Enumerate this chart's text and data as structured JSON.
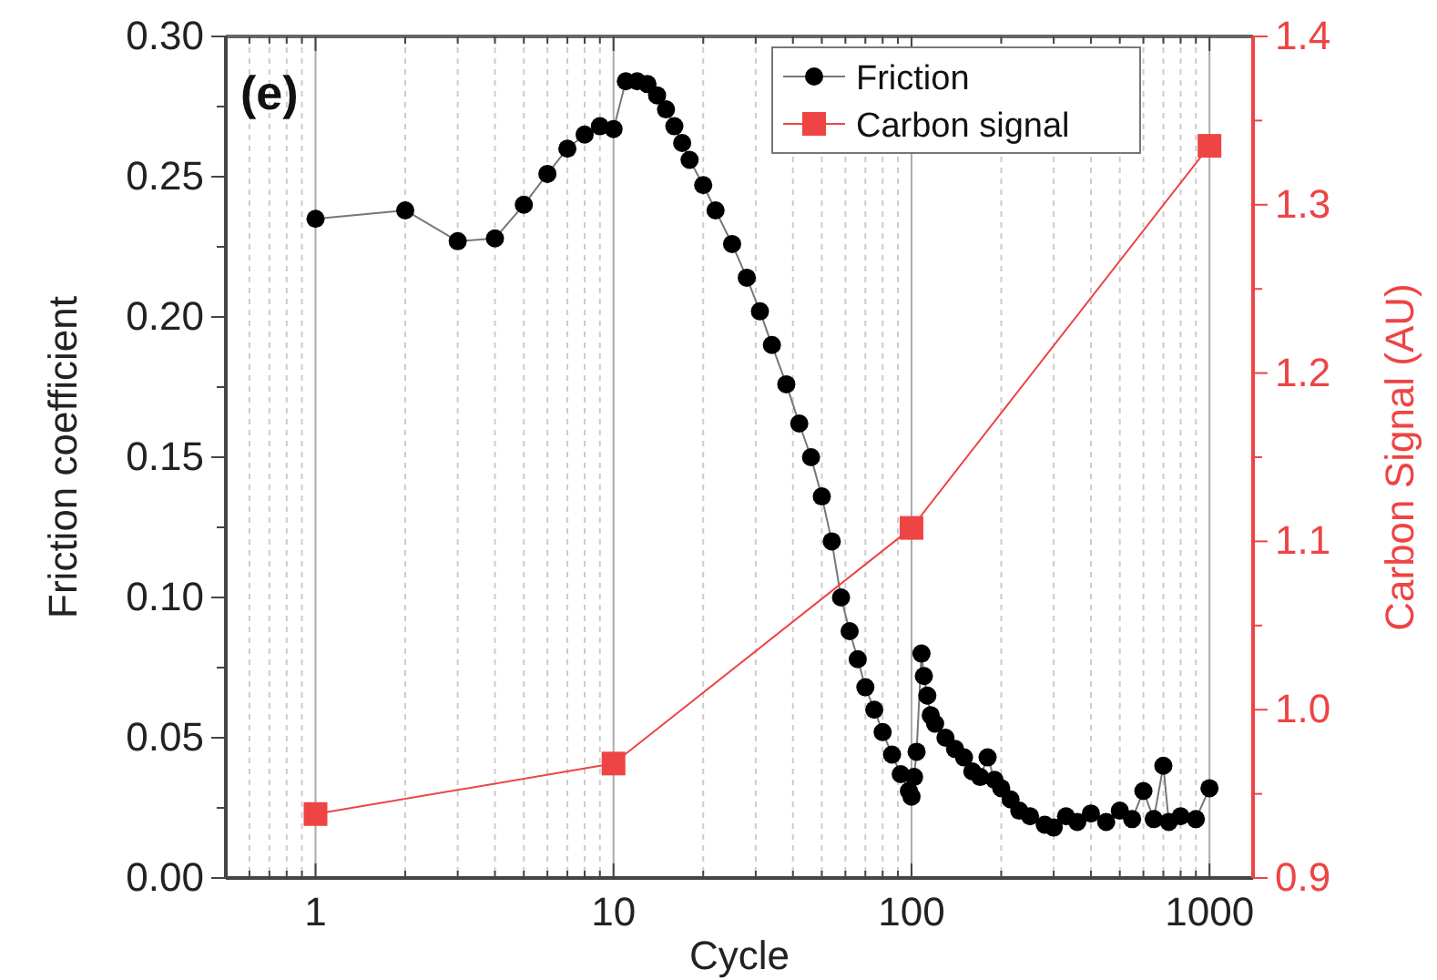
{
  "chart_data": {
    "type": "line",
    "xlabel": "Cycle",
    "ylabel": "Friction coefficient",
    "y2label": "Carbon Signal (AU)",
    "annotations": [
      "(e)"
    ],
    "log": "x",
    "grid": "x",
    "legend": "top right",
    "xlim": [
      0.5,
      1400
    ],
    "xticks": [
      {
        "value": 0.6,
        "label": null
      },
      {
        "value": 0.7,
        "label": null
      },
      {
        "value": 0.8,
        "label": null
      },
      {
        "value": 0.9,
        "label": null
      },
      1,
      {
        "value": 2,
        "label": null
      },
      {
        "value": 3,
        "label": null
      },
      {
        "value": 4,
        "label": null
      },
      {
        "value": 5,
        "label": null
      },
      {
        "value": 6,
        "label": null
      },
      {
        "value": 7,
        "label": null
      },
      {
        "value": 8,
        "label": null
      },
      {
        "value": 9,
        "label": null
      },
      10,
      {
        "value": 20,
        "label": null
      },
      {
        "value": 30,
        "label": null
      },
      {
        "value": 40,
        "label": null
      },
      {
        "value": 50,
        "label": null
      },
      {
        "value": 60,
        "label": null
      },
      {
        "value": 70,
        "label": null
      },
      {
        "value": 80,
        "label": null
      },
      {
        "value": 90,
        "label": null
      },
      100,
      {
        "value": 200,
        "label": null
      },
      {
        "value": 300,
        "label": null
      },
      {
        "value": 400,
        "label": null
      },
      {
        "value": 500,
        "label": null
      },
      {
        "value": 600,
        "label": null
      },
      {
        "value": 700,
        "label": null
      },
      {
        "value": 800,
        "label": null
      },
      {
        "value": 900,
        "label": null
      },
      1000
    ],
    "ylim": [
      0,
      0.3
    ],
    "yticks": [
      {
        "value": 0,
        "label": "0.00"
      },
      {
        "value": 0.025,
        "label": null
      },
      {
        "value": 0.05,
        "label": "0.05"
      },
      {
        "value": 0.075,
        "label": null
      },
      {
        "value": 0.1,
        "label": "0.10"
      },
      {
        "value": 0.125,
        "label": null
      },
      {
        "value": 0.15,
        "label": "0.15"
      },
      {
        "value": 0.175,
        "label": null
      },
      {
        "value": 0.2,
        "label": "0.20"
      },
      {
        "value": 0.225,
        "label": null
      },
      {
        "value": 0.25,
        "label": "0.25"
      },
      {
        "value": 0.275,
        "label": null
      },
      {
        "value": 0.3,
        "label": "0.30"
      }
    ],
    "y2lim": [
      0.9,
      1.4
    ],
    "y2ticks": [
      0.9,
      {
        "value": 0.95,
        "label": null
      },
      {
        "value": 1.0,
        "label": "1.0"
      },
      {
        "value": 1.05,
        "label": null
      },
      1.1,
      {
        "value": 1.15,
        "label": null
      },
      1.2,
      {
        "value": 1.25,
        "label": null
      },
      1.3,
      {
        "value": 1.35,
        "label": null
      },
      1.4
    ],
    "series": [
      {
        "name": "Friction",
        "color": "#000000",
        "marker": "circle",
        "x": [
          1,
          2,
          3,
          4,
          5,
          6,
          7,
          8,
          9,
          10,
          11,
          12,
          13,
          14,
          15,
          16,
          17,
          18,
          20,
          22,
          25,
          28,
          31,
          34,
          38,
          42,
          46,
          50,
          54,
          58,
          62,
          66,
          70,
          75,
          80,
          86,
          92,
          98,
          100,
          102,
          104,
          108,
          110,
          113,
          116,
          120,
          130,
          140,
          150,
          160,
          170,
          180,
          190,
          200,
          215,
          230,
          250,
          280,
          300,
          330,
          360,
          400,
          450,
          500,
          550,
          600,
          650,
          700,
          730,
          800,
          900,
          1000
        ],
        "values": [
          0.235,
          0.238,
          0.227,
          0.228,
          0.24,
          0.251,
          0.26,
          0.265,
          0.268,
          0.267,
          0.284,
          0.284,
          0.283,
          0.279,
          0.274,
          0.268,
          0.262,
          0.256,
          0.247,
          0.238,
          0.226,
          0.214,
          0.202,
          0.19,
          0.176,
          0.162,
          0.15,
          0.136,
          0.12,
          0.1,
          0.088,
          0.078,
          0.068,
          0.06,
          0.052,
          0.044,
          0.037,
          0.031,
          0.029,
          0.036,
          0.045,
          0.08,
          0.072,
          0.065,
          0.058,
          0.055,
          0.05,
          0.046,
          0.043,
          0.038,
          0.036,
          0.043,
          0.035,
          0.032,
          0.028,
          0.024,
          0.022,
          0.019,
          0.018,
          0.022,
          0.02,
          0.023,
          0.02,
          0.024,
          0.021,
          0.031,
          0.021,
          0.04,
          0.02,
          0.022,
          0.021,
          0.032
        ]
      },
      {
        "name": "Carbon signal",
        "color": "#ee4444",
        "marker": "square",
        "axis": "y2",
        "x": [
          1,
          10,
          100,
          1000
        ],
        "values": [
          0.938,
          0.968,
          1.108,
          1.335
        ]
      }
    ]
  }
}
